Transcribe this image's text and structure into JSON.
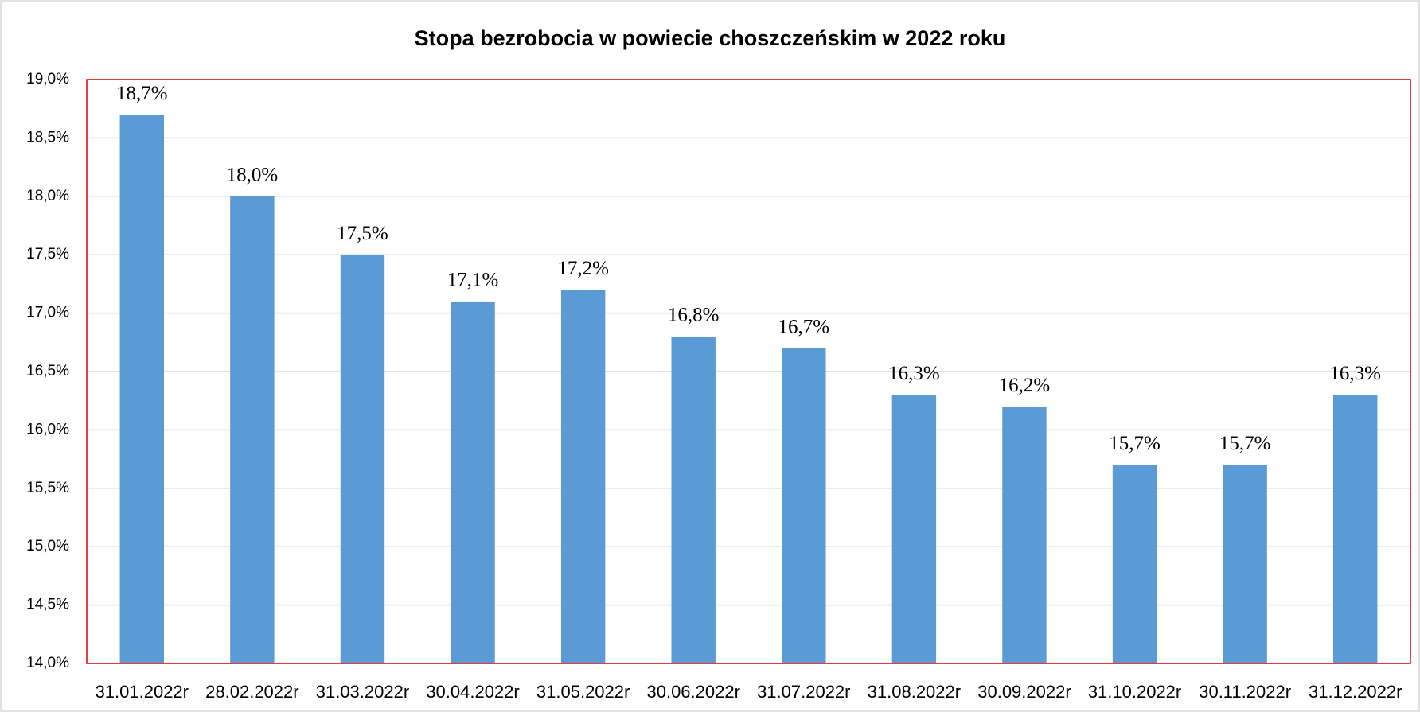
{
  "chart_data": {
    "type": "bar",
    "title": "Stopa bezrobocia w powiecie choszczeńskim w 2022 roku",
    "categories": [
      "31.01.2022r",
      "28.02.2022r",
      "31.03.2022r",
      "30.04.2022r",
      "31.05.2022r",
      "30.06.2022r",
      "31.07.2022r",
      "31.08.2022r",
      "30.09.2022r",
      "31.10.2022r",
      "30.11.2022r",
      "31.12.2022r"
    ],
    "values": [
      18.7,
      18.0,
      17.5,
      17.1,
      17.2,
      16.8,
      16.7,
      16.3,
      16.2,
      15.7,
      15.7,
      16.3
    ],
    "value_labels": [
      "18,7%",
      "18,0%",
      "17,5%",
      "17,1%",
      "17,2%",
      "16,8%",
      "16,7%",
      "16,3%",
      "16,2%",
      "15,7%",
      "15,7%",
      "16,3%"
    ],
    "color": "#5b9bd5",
    "ylim": [
      14,
      19
    ],
    "yticks": [
      {
        "value": 14,
        "label": "14,0%"
      },
      {
        "value": 14.5,
        "label": "14,5%"
      },
      {
        "value": 15,
        "label": "15,0%"
      },
      {
        "value": 15.5,
        "label": "15,5%"
      },
      {
        "value": 16,
        "label": "16,0%"
      },
      {
        "value": 16.5,
        "label": "16,5%"
      },
      {
        "value": 17,
        "label": "17,0%"
      },
      {
        "value": 17.5,
        "label": "17,5%"
      },
      {
        "value": 18,
        "label": "18,0%"
      },
      {
        "value": 18.5,
        "label": "18,5%"
      },
      {
        "value": 19,
        "label": "19,0%"
      }
    ],
    "grid": true
  }
}
